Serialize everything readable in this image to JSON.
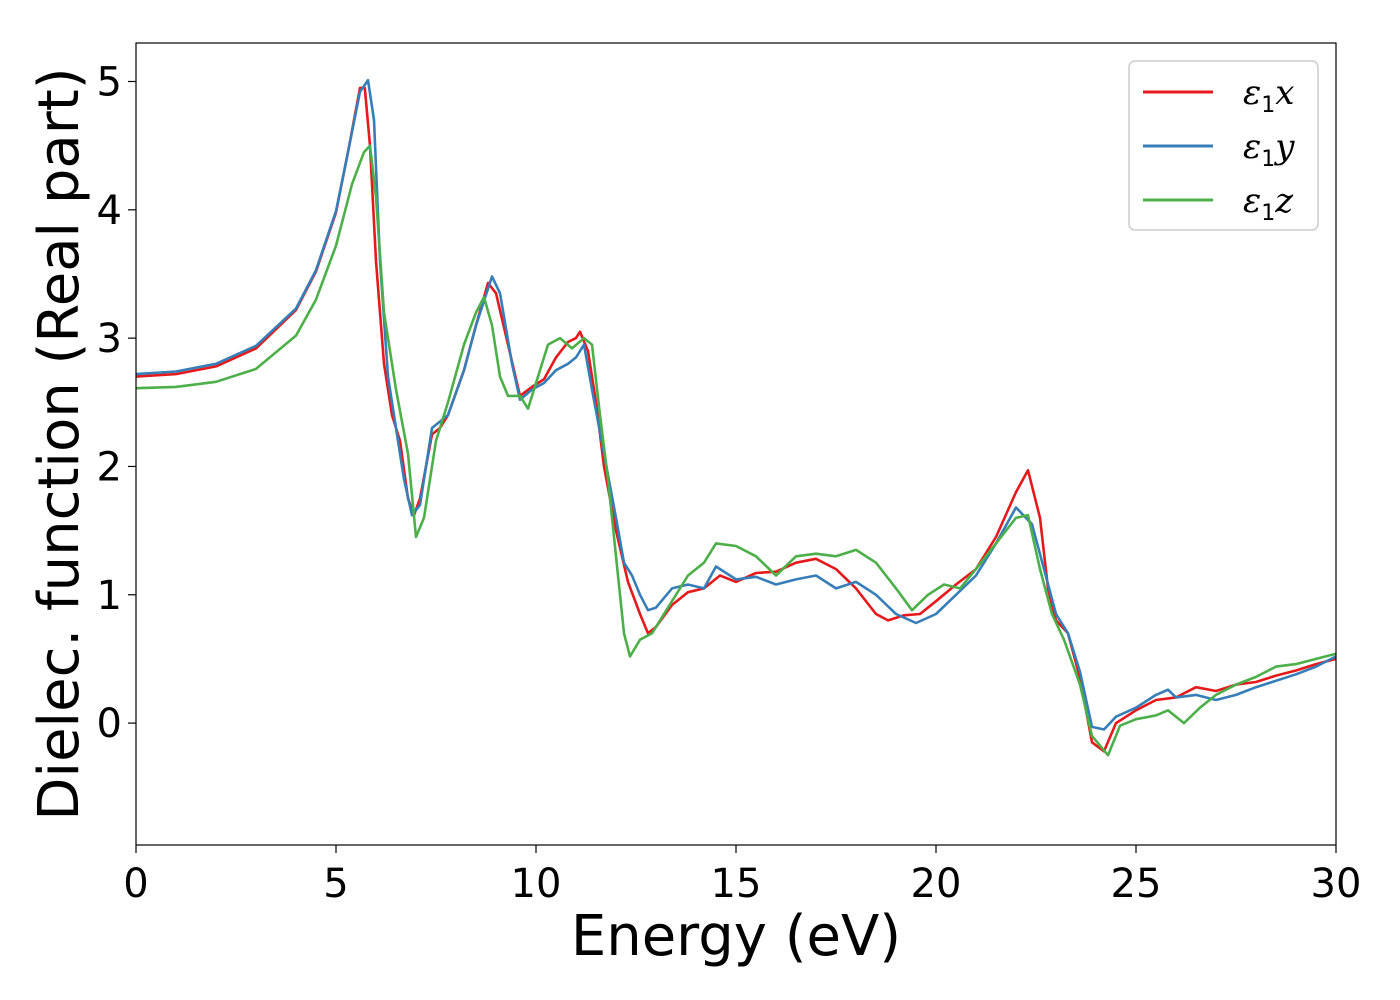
{
  "chart_data": {
    "type": "line",
    "title": "",
    "xlabel": "Energy (eV)",
    "ylabel": "Dielec. function (Real part)",
    "xlim": [
      0,
      30
    ],
    "ylim": [
      -0.95,
      5.3
    ],
    "xticks": [
      0,
      5,
      10,
      15,
      20,
      25,
      30
    ],
    "yticks": [
      0,
      1,
      2,
      3,
      4,
      5
    ],
    "grid": false,
    "legend_position": "top-right",
    "series": [
      {
        "name": "ε1x",
        "color": "#e41a1c",
        "points": [
          [
            0,
            2.7
          ],
          [
            1,
            2.72
          ],
          [
            2,
            2.78
          ],
          [
            3,
            2.92
          ],
          [
            4,
            3.22
          ],
          [
            4.5,
            3.52
          ],
          [
            5,
            3.98
          ],
          [
            5.3,
            4.45
          ],
          [
            5.6,
            4.95
          ],
          [
            5.72,
            4.95
          ],
          [
            5.85,
            4.5
          ],
          [
            6.0,
            3.6
          ],
          [
            6.2,
            2.8
          ],
          [
            6.4,
            2.4
          ],
          [
            6.6,
            2.2
          ],
          [
            6.8,
            1.75
          ],
          [
            6.95,
            1.62
          ],
          [
            7.1,
            1.75
          ],
          [
            7.4,
            2.25
          ],
          [
            7.6,
            2.3
          ],
          [
            7.8,
            2.4
          ],
          [
            8.2,
            2.75
          ],
          [
            8.5,
            3.1
          ],
          [
            8.8,
            3.43
          ],
          [
            9.0,
            3.35
          ],
          [
            9.3,
            2.95
          ],
          [
            9.6,
            2.55
          ],
          [
            9.9,
            2.62
          ],
          [
            10.2,
            2.68
          ],
          [
            10.5,
            2.85
          ],
          [
            10.8,
            2.97
          ],
          [
            11.0,
            3.0
          ],
          [
            11.1,
            3.05
          ],
          [
            11.3,
            2.9
          ],
          [
            11.5,
            2.5
          ],
          [
            11.7,
            2.0
          ],
          [
            12.0,
            1.5
          ],
          [
            12.3,
            1.1
          ],
          [
            12.6,
            0.85
          ],
          [
            12.8,
            0.7
          ],
          [
            13.0,
            0.75
          ],
          [
            13.4,
            0.92
          ],
          [
            13.8,
            1.02
          ],
          [
            14.2,
            1.05
          ],
          [
            14.6,
            1.15
          ],
          [
            15.0,
            1.1
          ],
          [
            15.5,
            1.17
          ],
          [
            16.0,
            1.18
          ],
          [
            16.5,
            1.25
          ],
          [
            17.0,
            1.28
          ],
          [
            17.5,
            1.2
          ],
          [
            18.0,
            1.05
          ],
          [
            18.5,
            0.85
          ],
          [
            18.8,
            0.8
          ],
          [
            19.2,
            0.84
          ],
          [
            19.6,
            0.85
          ],
          [
            20.0,
            0.95
          ],
          [
            20.5,
            1.08
          ],
          [
            21.0,
            1.2
          ],
          [
            21.5,
            1.45
          ],
          [
            22.0,
            1.8
          ],
          [
            22.3,
            1.97
          ],
          [
            22.6,
            1.6
          ],
          [
            22.8,
            1.05
          ],
          [
            23.0,
            0.8
          ],
          [
            23.3,
            0.7
          ],
          [
            23.6,
            0.35
          ],
          [
            23.9,
            -0.15
          ],
          [
            24.2,
            -0.22
          ],
          [
            24.5,
            0.0
          ],
          [
            25.0,
            0.1
          ],
          [
            25.5,
            0.18
          ],
          [
            26.0,
            0.2
          ],
          [
            26.5,
            0.28
          ],
          [
            27.0,
            0.25
          ],
          [
            27.5,
            0.3
          ],
          [
            28.0,
            0.32
          ],
          [
            28.5,
            0.37
          ],
          [
            29.0,
            0.41
          ],
          [
            29.5,
            0.46
          ],
          [
            30.0,
            0.5
          ]
        ]
      },
      {
        "name": "ε1y",
        "color": "#377eb8",
        "points": [
          [
            0,
            2.72
          ],
          [
            1,
            2.74
          ],
          [
            2,
            2.8
          ],
          [
            3,
            2.94
          ],
          [
            4,
            3.23
          ],
          [
            4.5,
            3.53
          ],
          [
            5,
            3.99
          ],
          [
            5.3,
            4.45
          ],
          [
            5.6,
            4.92
          ],
          [
            5.8,
            5.01
          ],
          [
            5.95,
            4.7
          ],
          [
            6.1,
            3.6
          ],
          [
            6.3,
            2.7
          ],
          [
            6.5,
            2.3
          ],
          [
            6.7,
            1.9
          ],
          [
            6.9,
            1.62
          ],
          [
            7.1,
            1.7
          ],
          [
            7.4,
            2.3
          ],
          [
            7.6,
            2.35
          ],
          [
            7.8,
            2.4
          ],
          [
            8.2,
            2.75
          ],
          [
            8.5,
            3.1
          ],
          [
            8.9,
            3.48
          ],
          [
            9.1,
            3.35
          ],
          [
            9.4,
            2.8
          ],
          [
            9.6,
            2.52
          ],
          [
            9.9,
            2.6
          ],
          [
            10.2,
            2.65
          ],
          [
            10.5,
            2.75
          ],
          [
            10.8,
            2.8
          ],
          [
            11.0,
            2.85
          ],
          [
            11.2,
            2.95
          ],
          [
            11.4,
            2.6
          ],
          [
            11.7,
            2.1
          ],
          [
            12.0,
            1.6
          ],
          [
            12.2,
            1.25
          ],
          [
            12.4,
            1.15
          ],
          [
            12.6,
            1.0
          ],
          [
            12.8,
            0.88
          ],
          [
            13.0,
            0.9
          ],
          [
            13.4,
            1.05
          ],
          [
            13.8,
            1.08
          ],
          [
            14.2,
            1.05
          ],
          [
            14.5,
            1.22
          ],
          [
            15.0,
            1.12
          ],
          [
            15.5,
            1.14
          ],
          [
            16.0,
            1.08
          ],
          [
            16.5,
            1.12
          ],
          [
            17.0,
            1.15
          ],
          [
            17.5,
            1.05
          ],
          [
            18.0,
            1.1
          ],
          [
            18.5,
            1.0
          ],
          [
            19.0,
            0.85
          ],
          [
            19.5,
            0.78
          ],
          [
            20.0,
            0.85
          ],
          [
            20.5,
            1.0
          ],
          [
            21.0,
            1.15
          ],
          [
            21.5,
            1.4
          ],
          [
            22.0,
            1.68
          ],
          [
            22.4,
            1.55
          ],
          [
            22.7,
            1.2
          ],
          [
            23.0,
            0.85
          ],
          [
            23.3,
            0.7
          ],
          [
            23.6,
            0.4
          ],
          [
            23.9,
            -0.03
          ],
          [
            24.2,
            -0.05
          ],
          [
            24.5,
            0.05
          ],
          [
            25.0,
            0.12
          ],
          [
            25.5,
            0.22
          ],
          [
            25.8,
            0.26
          ],
          [
            26.0,
            0.2
          ],
          [
            26.5,
            0.22
          ],
          [
            27.0,
            0.18
          ],
          [
            27.5,
            0.22
          ],
          [
            28.0,
            0.28
          ],
          [
            28.5,
            0.33
          ],
          [
            29.0,
            0.38
          ],
          [
            29.5,
            0.44
          ],
          [
            30.0,
            0.52
          ]
        ]
      },
      {
        "name": "ε1z",
        "color": "#4daf4a",
        "points": [
          [
            0,
            2.61
          ],
          [
            1,
            2.62
          ],
          [
            2,
            2.66
          ],
          [
            3,
            2.76
          ],
          [
            4,
            3.02
          ],
          [
            4.5,
            3.3
          ],
          [
            5,
            3.72
          ],
          [
            5.4,
            4.2
          ],
          [
            5.7,
            4.45
          ],
          [
            5.85,
            4.5
          ],
          [
            6.0,
            4.1
          ],
          [
            6.2,
            3.2
          ],
          [
            6.5,
            2.6
          ],
          [
            6.8,
            2.1
          ],
          [
            7.0,
            1.45
          ],
          [
            7.2,
            1.6
          ],
          [
            7.5,
            2.2
          ],
          [
            7.8,
            2.5
          ],
          [
            8.2,
            2.95
          ],
          [
            8.5,
            3.2
          ],
          [
            8.7,
            3.32
          ],
          [
            8.9,
            3.1
          ],
          [
            9.1,
            2.7
          ],
          [
            9.3,
            2.55
          ],
          [
            9.6,
            2.55
          ],
          [
            9.8,
            2.45
          ],
          [
            10.0,
            2.65
          ],
          [
            10.3,
            2.95
          ],
          [
            10.6,
            3.0
          ],
          [
            10.9,
            2.92
          ],
          [
            11.2,
            3.0
          ],
          [
            11.4,
            2.95
          ],
          [
            11.6,
            2.4
          ],
          [
            11.8,
            1.9
          ],
          [
            12.0,
            1.3
          ],
          [
            12.2,
            0.7
          ],
          [
            12.35,
            0.52
          ],
          [
            12.6,
            0.65
          ],
          [
            12.9,
            0.7
          ],
          [
            13.3,
            0.9
          ],
          [
            13.8,
            1.15
          ],
          [
            14.2,
            1.25
          ],
          [
            14.5,
            1.4
          ],
          [
            15.0,
            1.38
          ],
          [
            15.5,
            1.3
          ],
          [
            16.0,
            1.15
          ],
          [
            16.5,
            1.3
          ],
          [
            17.0,
            1.32
          ],
          [
            17.5,
            1.3
          ],
          [
            18.0,
            1.35
          ],
          [
            18.5,
            1.25
          ],
          [
            19.0,
            1.05
          ],
          [
            19.4,
            0.88
          ],
          [
            19.8,
            1.0
          ],
          [
            20.2,
            1.08
          ],
          [
            20.6,
            1.05
          ],
          [
            21.0,
            1.2
          ],
          [
            21.5,
            1.4
          ],
          [
            22.0,
            1.6
          ],
          [
            22.3,
            1.62
          ],
          [
            22.6,
            1.2
          ],
          [
            22.9,
            0.85
          ],
          [
            23.2,
            0.65
          ],
          [
            23.6,
            0.3
          ],
          [
            23.9,
            -0.1
          ],
          [
            24.3,
            -0.25
          ],
          [
            24.6,
            -0.02
          ],
          [
            25.0,
            0.03
          ],
          [
            25.5,
            0.06
          ],
          [
            25.8,
            0.1
          ],
          [
            26.2,
            0.0
          ],
          [
            26.6,
            0.12
          ],
          [
            27.0,
            0.22
          ],
          [
            27.5,
            0.3
          ],
          [
            28.0,
            0.36
          ],
          [
            28.5,
            0.44
          ],
          [
            29.0,
            0.46
          ],
          [
            29.5,
            0.5
          ],
          [
            30.0,
            0.54
          ]
        ]
      }
    ]
  }
}
